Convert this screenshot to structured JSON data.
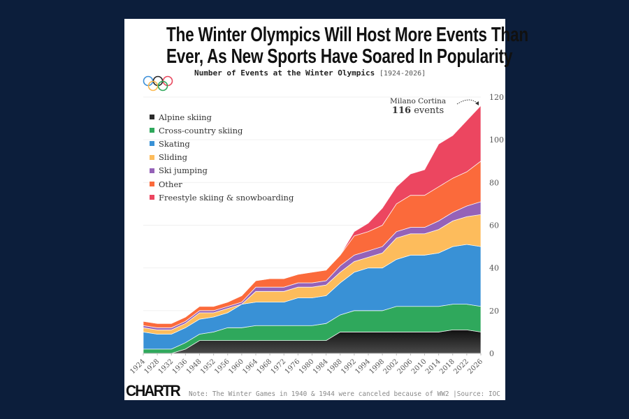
{
  "title": {
    "line1": "The Winter Olympics Will Host More Events Than",
    "line2": "Ever, As New Sports Have Soared In Popularity"
  },
  "subtitle": {
    "text": "Number of Events at the Winter Olympics",
    "range": "[1924-2026]"
  },
  "logo": "CHARTR",
  "footer": {
    "note": "Note: The Winter Games in 1940 & 1944 were canceled because of WW2 |Source: IOC"
  },
  "annotation": {
    "place": "Milano Cortina",
    "count": "116",
    "unit": "events"
  },
  "chart_data": {
    "type": "area",
    "stacked": true,
    "title": "Number of Events at the Winter Olympics",
    "xlabel": "",
    "ylabel": "",
    "ylim": [
      0,
      120
    ],
    "yticks": [
      0,
      20,
      40,
      60,
      80,
      100,
      120
    ],
    "y_axis_side": "right",
    "grid": true,
    "legend_position": "top-left",
    "categories": [
      "1924",
      "1928",
      "1932",
      "1936",
      "1948",
      "1952",
      "1956",
      "1960",
      "1964",
      "1968",
      "1972",
      "1976",
      "1980",
      "1984",
      "1988",
      "1992",
      "1994",
      "1998",
      "2002",
      "2006",
      "2010",
      "2014",
      "2018",
      "2022",
      "2026"
    ],
    "series": [
      {
        "name": "Alpine skiing",
        "color": "#2b2b2b",
        "values": [
          0,
          0,
          0,
          2,
          6,
          6,
          6,
          6,
          6,
          6,
          6,
          6,
          6,
          6,
          10,
          10,
          10,
          10,
          10,
          10,
          10,
          10,
          11,
          11,
          10
        ]
      },
      {
        "name": "Cross-country skiing",
        "color": "#2fa85c",
        "values": [
          2,
          2,
          2,
          3,
          3,
          4,
          6,
          6,
          7,
          7,
          7,
          7,
          7,
          8,
          8,
          10,
          10,
          10,
          12,
          12,
          12,
          12,
          12,
          12,
          12
        ]
      },
      {
        "name": "Skating",
        "color": "#3991d6",
        "values": [
          8,
          7,
          7,
          7,
          7,
          7,
          7,
          11,
          11,
          11,
          11,
          13,
          13,
          13,
          15,
          18,
          20,
          20,
          22,
          24,
          24,
          25,
          27,
          28,
          28
        ]
      },
      {
        "name": "Sliding",
        "color": "#fdbc5c",
        "values": [
          2,
          2,
          2,
          2,
          3,
          2,
          2,
          0,
          5,
          5,
          5,
          5,
          5,
          5,
          5,
          5,
          5,
          7,
          10,
          10,
          10,
          11,
          12,
          13,
          15
        ]
      },
      {
        "name": "Ski jumping",
        "color": "#9562b8",
        "values": [
          1,
          1,
          1,
          1,
          1,
          1,
          1,
          1,
          2,
          2,
          2,
          2,
          2,
          2,
          3,
          3,
          3,
          3,
          3,
          3,
          3,
          4,
          4,
          5,
          6
        ]
      },
      {
        "name": "Other",
        "color": "#fb6a3b",
        "values": [
          2,
          2,
          2,
          2,
          2,
          2,
          2,
          3,
          3,
          4,
          4,
          4,
          5,
          5,
          5,
          9,
          9,
          10,
          13,
          15,
          15,
          16,
          16,
          16,
          19
        ]
      },
      {
        "name": "Freestyle skiing & snowboarding",
        "color": "#ec4660",
        "values": [
          0,
          0,
          0,
          0,
          0,
          0,
          0,
          0,
          0,
          0,
          0,
          0,
          0,
          0,
          0,
          2,
          4,
          8,
          8,
          10,
          12,
          20,
          20,
          24,
          26
        ]
      }
    ],
    "totals": [
      15,
      14,
      14,
      17,
      22,
      22,
      24,
      27,
      34,
      35,
      35,
      37,
      38,
      39,
      46,
      57,
      61,
      68,
      78,
      84,
      86,
      98,
      102,
      109,
      116
    ]
  }
}
